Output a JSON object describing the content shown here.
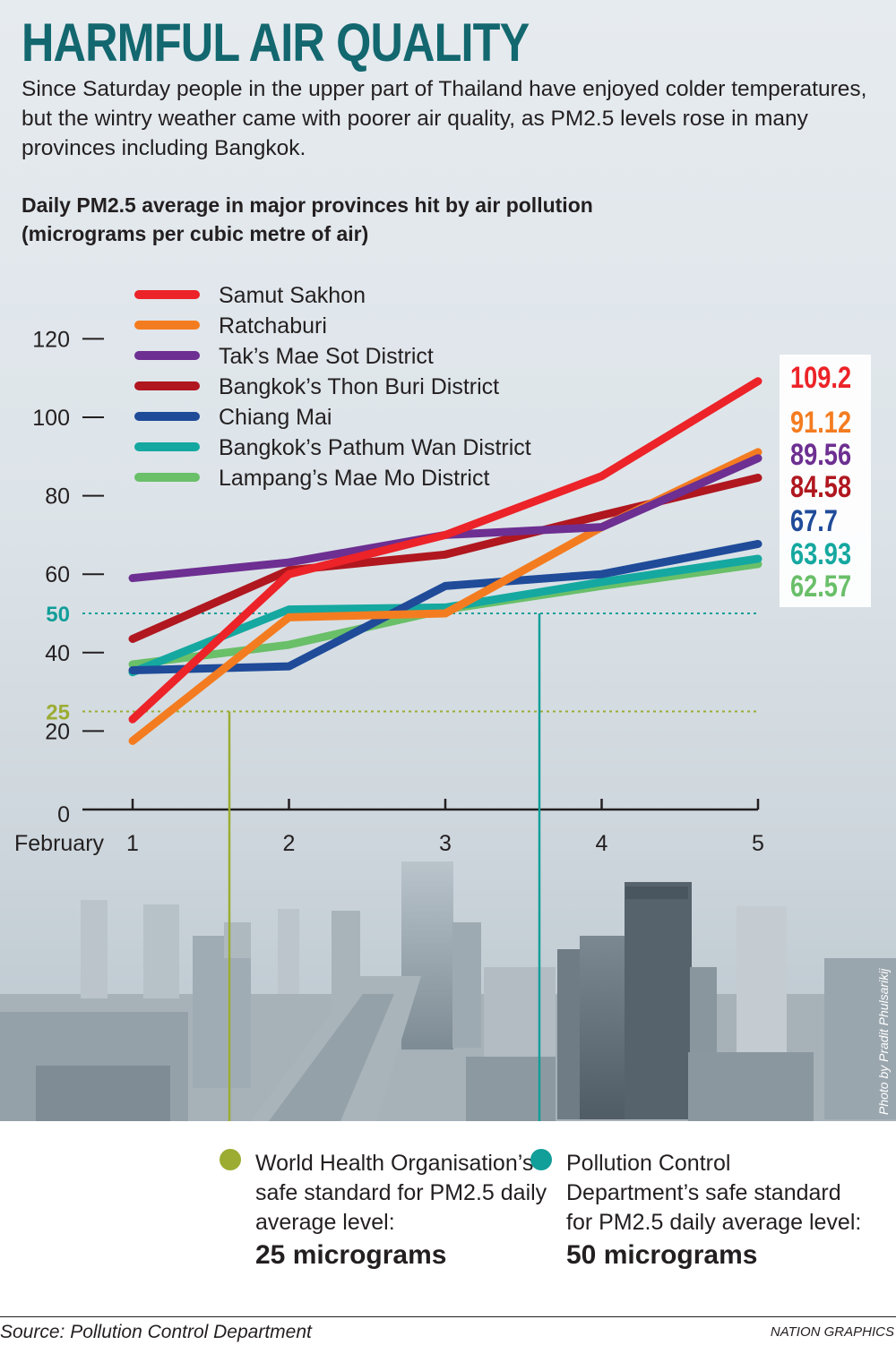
{
  "headline": "HARMFUL AIR QUALITY",
  "intro": "Since Saturday people in the upper part of Thailand have enjoyed colder temperatures, but the wintry weather came with poorer air quality, as PM2.5 levels rose in many provinces including Bangkok.",
  "photo_credit": "Photo by Pradit Phulsarikij",
  "standards": [
    {
      "text": "World Health Organisation’s safe standard for PM2.5 daily average level:",
      "value": "25 micrograms",
      "color": "#9cac32"
    },
    {
      "text": "Pollution Control Department’s safe standard for PM2.5 daily average level:",
      "value": "50 micrograms",
      "color": "#129e99"
    }
  ],
  "source": "Source: Pollution Control Department",
  "credit": "NATION GRAPHICS",
  "chart_data": {
    "type": "line",
    "title": "Daily PM2.5 average in major provinces hit by air pollution",
    "subtitle": "(micrograms per cubic metre of air)",
    "xlabel": "February",
    "x": [
      "1",
      "2",
      "3",
      "4",
      "5"
    ],
    "yticks": [
      0,
      20,
      40,
      60,
      80,
      100,
      120
    ],
    "ylim": [
      0,
      120
    ],
    "grid": false,
    "legend_position": "top-left",
    "series": [
      {
        "name": "Samut Sakhon",
        "color": "#ec2328",
        "values": [
          23,
          60,
          70,
          85,
          109.2
        ],
        "end_label": "109.2"
      },
      {
        "name": "Ratchaburi",
        "color": "#f47c20",
        "values": [
          17.5,
          49,
          50,
          72,
          91.12
        ],
        "end_label": "91.12"
      },
      {
        "name": "Tak’s Mae Sot District",
        "color": "#6d2f91",
        "values": [
          59,
          63,
          70,
          72,
          89.56
        ],
        "end_label": "89.56"
      },
      {
        "name": "Bangkok’s Thon Buri District",
        "color": "#b0171f",
        "values": [
          43.5,
          61,
          65,
          75,
          84.58
        ],
        "end_label": "84.58"
      },
      {
        "name": "Chiang Mai",
        "color": "#1f4b99",
        "values": [
          35.5,
          36.5,
          57,
          60,
          67.7
        ],
        "end_label": "67.7"
      },
      {
        "name": "Bangkok’s Pathum Wan District",
        "color": "#15a8a0",
        "values": [
          35,
          51,
          51.5,
          58,
          63.93
        ],
        "end_label": "63.93"
      },
      {
        "name": "Lampang’s Mae Mo District",
        "color": "#6abf69",
        "values": [
          37,
          42,
          51,
          57,
          62.57
        ],
        "end_label": "62.57"
      }
    ],
    "reference_lines": [
      {
        "value": 50,
        "label": "50",
        "color": "#129e99"
      },
      {
        "value": 25,
        "label": "25",
        "color": "#9cac32"
      }
    ]
  }
}
